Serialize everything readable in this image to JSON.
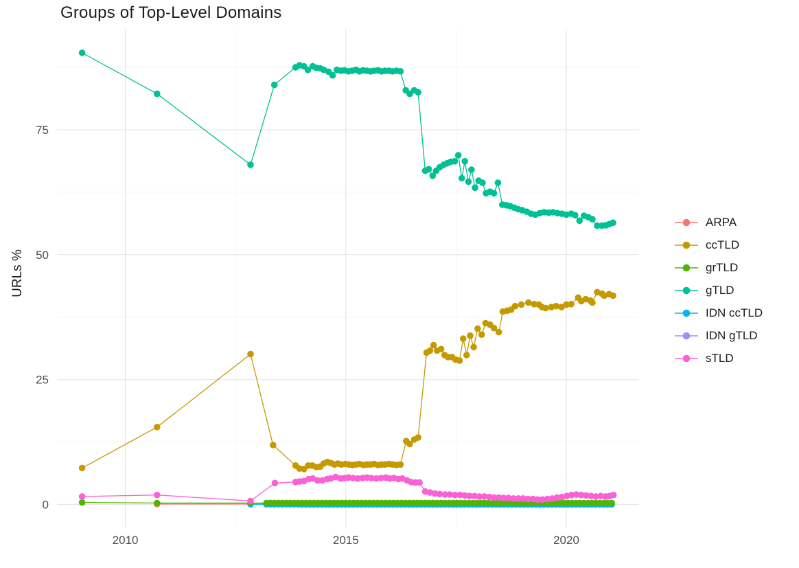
{
  "chart_data": {
    "type": "line",
    "title": "Groups of Top-Level Domains",
    "xlabel": "",
    "ylabel": "URLs %",
    "xlim": [
      2008.45,
      2021.65
    ],
    "ylim": [
      -4.6,
      95.2
    ],
    "grid": "on",
    "legend_position": "right",
    "x_ticks": [
      {
        "value": 2010,
        "label": "2010"
      },
      {
        "value": 2015,
        "label": "2015"
      },
      {
        "value": 2020,
        "label": "2020"
      }
    ],
    "y_ticks": [
      {
        "value": 0,
        "label": "0"
      },
      {
        "value": 25,
        "label": "25"
      },
      {
        "value": 50,
        "label": "50"
      },
      {
        "value": 75,
        "label": "75"
      }
    ],
    "x_minor": [
      2012.5,
      2017.5
    ],
    "y_minor": [
      12.5,
      37.5,
      62.5,
      87.5
    ],
    "draw_order": [
      "ARPA",
      "IDN gTLD",
      "IDN ccTLD",
      "grTLD",
      "ccTLD",
      "gTLD",
      "sTLD"
    ],
    "series": [
      {
        "name": "ARPA",
        "color": "#F8766D",
        "points": [
          [
            2010.72,
            0.1
          ],
          [
            2012.84,
            0.1
          ]
        ],
        "flat_segment": {
          "from": 2013.2,
          "to": 2021.06,
          "step": 0.09,
          "value": 0.1
        }
      },
      {
        "name": "ccTLD",
        "color": "#C49A00",
        "points": [
          [
            2009.02,
            7.3
          ],
          [
            2010.72,
            15.5
          ],
          [
            2012.84,
            30.1
          ],
          [
            2013.35,
            11.9
          ],
          [
            2013.86,
            7.8
          ],
          [
            2013.95,
            7.2
          ],
          [
            2014.05,
            7.1
          ],
          [
            2014.15,
            7.8
          ],
          [
            2014.24,
            7.8
          ],
          [
            2014.33,
            7.5
          ],
          [
            2014.42,
            7.6
          ],
          [
            2014.5,
            8.2
          ],
          [
            2014.58,
            8.5
          ],
          [
            2014.66,
            8.3
          ],
          [
            2014.74,
            8.0
          ],
          [
            2014.82,
            8.2
          ],
          [
            2014.9,
            8.0
          ],
          [
            2014.99,
            8.1
          ],
          [
            2015.07,
            8.0
          ],
          [
            2015.15,
            7.9
          ],
          [
            2015.23,
            8.0
          ],
          [
            2015.31,
            8.1
          ],
          [
            2015.4,
            7.9
          ],
          [
            2015.48,
            8.0
          ],
          [
            2015.56,
            8.0
          ],
          [
            2015.64,
            8.1
          ],
          [
            2015.73,
            7.9
          ],
          [
            2015.81,
            8.0
          ],
          [
            2015.89,
            8.0
          ],
          [
            2015.98,
            8.1
          ],
          [
            2016.06,
            8.0
          ],
          [
            2016.15,
            7.9
          ],
          [
            2016.24,
            8.0
          ],
          [
            2016.37,
            12.7
          ],
          [
            2016.45,
            12.1
          ],
          [
            2016.55,
            13.0
          ],
          [
            2016.64,
            13.4
          ],
          [
            2016.83,
            30.4
          ],
          [
            2016.91,
            30.8
          ],
          [
            2016.99,
            31.9
          ],
          [
            2017.07,
            30.8
          ],
          [
            2017.16,
            31.1
          ],
          [
            2017.24,
            29.9
          ],
          [
            2017.32,
            29.5
          ],
          [
            2017.41,
            29.5
          ],
          [
            2017.49,
            29.0
          ],
          [
            2017.58,
            28.8
          ],
          [
            2017.66,
            33.2
          ],
          [
            2017.74,
            29.9
          ],
          [
            2017.82,
            33.8
          ],
          [
            2017.9,
            31.5
          ],
          [
            2017.99,
            35.2
          ],
          [
            2018.08,
            34.0
          ],
          [
            2018.17,
            36.3
          ],
          [
            2018.27,
            36.0
          ],
          [
            2018.36,
            35.3
          ],
          [
            2018.47,
            34.5
          ],
          [
            2018.56,
            38.6
          ],
          [
            2018.66,
            38.8
          ],
          [
            2018.75,
            39.0
          ],
          [
            2018.84,
            39.7
          ],
          [
            2018.98,
            40.0
          ],
          [
            2019.14,
            40.4
          ],
          [
            2019.27,
            40.1
          ],
          [
            2019.38,
            40.0
          ],
          [
            2019.45,
            39.5
          ],
          [
            2019.53,
            39.3
          ],
          [
            2019.66,
            39.5
          ],
          [
            2019.77,
            39.7
          ],
          [
            2019.89,
            39.5
          ],
          [
            2020.0,
            40.0
          ],
          [
            2020.11,
            40.1
          ],
          [
            2020.27,
            41.4
          ],
          [
            2020.34,
            40.7
          ],
          [
            2020.44,
            41.1
          ],
          [
            2020.55,
            40.8
          ],
          [
            2020.59,
            40.4
          ],
          [
            2020.7,
            42.5
          ],
          [
            2020.81,
            42.2
          ],
          [
            2020.86,
            41.8
          ],
          [
            2020.97,
            42.1
          ],
          [
            2021.06,
            41.8
          ]
        ]
      },
      {
        "name": "grTLD",
        "color": "#53B400",
        "points": [
          [
            2009.02,
            0.4
          ],
          [
            2010.72,
            0.3
          ],
          [
            2012.84,
            0.3
          ]
        ],
        "flat_segment": {
          "from": 2013.2,
          "to": 2021.06,
          "step": 0.09,
          "value": 0.3
        }
      },
      {
        "name": "gTLD",
        "color": "#00C094",
        "points": [
          [
            2009.02,
            90.4
          ],
          [
            2010.72,
            82.2
          ],
          [
            2012.84,
            68.0
          ],
          [
            2013.38,
            84.0
          ],
          [
            2013.86,
            87.5
          ],
          [
            2013.95,
            87.9
          ],
          [
            2014.05,
            87.7
          ],
          [
            2014.14,
            87.0
          ],
          [
            2014.25,
            87.7
          ],
          [
            2014.33,
            87.4
          ],
          [
            2014.42,
            87.3
          ],
          [
            2014.5,
            87.0
          ],
          [
            2014.61,
            86.6
          ],
          [
            2014.7,
            85.9
          ],
          [
            2014.8,
            87.0
          ],
          [
            2014.89,
            86.8
          ],
          [
            2014.97,
            86.9
          ],
          [
            2015.06,
            86.7
          ],
          [
            2015.14,
            86.8
          ],
          [
            2015.23,
            87.0
          ],
          [
            2015.31,
            86.7
          ],
          [
            2015.39,
            86.9
          ],
          [
            2015.48,
            86.8
          ],
          [
            2015.56,
            86.7
          ],
          [
            2015.64,
            86.8
          ],
          [
            2015.73,
            86.9
          ],
          [
            2015.81,
            86.7
          ],
          [
            2015.89,
            86.8
          ],
          [
            2015.98,
            86.8
          ],
          [
            2016.06,
            86.7
          ],
          [
            2016.15,
            86.8
          ],
          [
            2016.24,
            86.7
          ],
          [
            2016.36,
            82.9
          ],
          [
            2016.45,
            82.2
          ],
          [
            2016.55,
            82.9
          ],
          [
            2016.64,
            82.5
          ],
          [
            2016.8,
            66.8
          ],
          [
            2016.88,
            67.1
          ],
          [
            2016.97,
            65.8
          ],
          [
            2017.05,
            66.8
          ],
          [
            2017.13,
            67.5
          ],
          [
            2017.22,
            68.0
          ],
          [
            2017.3,
            68.3
          ],
          [
            2017.38,
            68.6
          ],
          [
            2017.47,
            68.7
          ],
          [
            2017.55,
            69.9
          ],
          [
            2017.63,
            65.3
          ],
          [
            2017.7,
            68.7
          ],
          [
            2017.78,
            64.6
          ],
          [
            2017.85,
            67.0
          ],
          [
            2017.93,
            63.4
          ],
          [
            2018.01,
            64.8
          ],
          [
            2018.1,
            64.4
          ],
          [
            2018.18,
            62.3
          ],
          [
            2018.27,
            62.6
          ],
          [
            2018.36,
            62.3
          ],
          [
            2018.45,
            64.4
          ],
          [
            2018.55,
            60.0
          ],
          [
            2018.64,
            59.9
          ],
          [
            2018.73,
            59.7
          ],
          [
            2018.82,
            59.4
          ],
          [
            2018.91,
            59.1
          ],
          [
            2019.0,
            58.9
          ],
          [
            2019.1,
            58.6
          ],
          [
            2019.2,
            58.2
          ],
          [
            2019.3,
            58.0
          ],
          [
            2019.4,
            58.3
          ],
          [
            2019.5,
            58.5
          ],
          [
            2019.6,
            58.4
          ],
          [
            2019.7,
            58.5
          ],
          [
            2019.8,
            58.3
          ],
          [
            2019.9,
            58.2
          ],
          [
            2020.0,
            58.0
          ],
          [
            2020.11,
            58.2
          ],
          [
            2020.2,
            57.9
          ],
          [
            2020.3,
            56.8
          ],
          [
            2020.4,
            57.8
          ],
          [
            2020.5,
            57.5
          ],
          [
            2020.59,
            57.1
          ],
          [
            2020.7,
            55.8
          ],
          [
            2020.81,
            55.8
          ],
          [
            2020.9,
            55.9
          ],
          [
            2020.97,
            56.1
          ],
          [
            2021.06,
            56.4
          ]
        ]
      },
      {
        "name": "IDN ccTLD",
        "color": "#00B6EB",
        "points": [
          [
            2012.84,
            0.05
          ]
        ],
        "flat_segment": {
          "from": 2013.2,
          "to": 2021.06,
          "step": 0.09,
          "value": 0.05
        }
      },
      {
        "name": "IDN gTLD",
        "color": "#A58AFF",
        "points": [],
        "flat_segment": {
          "from": 2014.0,
          "to": 2021.06,
          "step": 0.09,
          "value": 0.0
        }
      },
      {
        "name": "sTLD",
        "color": "#FB61D7",
        "points": [
          [
            2009.02,
            1.6
          ],
          [
            2010.72,
            1.9
          ],
          [
            2012.84,
            0.7
          ],
          [
            2013.39,
            4.3
          ],
          [
            2013.86,
            4.5
          ],
          [
            2013.95,
            4.6
          ],
          [
            2014.05,
            4.7
          ],
          [
            2014.16,
            5.1
          ],
          [
            2014.25,
            5.2
          ],
          [
            2014.36,
            4.8
          ],
          [
            2014.47,
            4.8
          ],
          [
            2014.58,
            5.1
          ],
          [
            2014.66,
            5.2
          ],
          [
            2014.77,
            5.5
          ],
          [
            2014.88,
            5.2
          ],
          [
            2014.97,
            5.3
          ],
          [
            2015.06,
            5.4
          ],
          [
            2015.16,
            5.3
          ],
          [
            2015.27,
            5.2
          ],
          [
            2015.38,
            5.3
          ],
          [
            2015.48,
            5.4
          ],
          [
            2015.58,
            5.3
          ],
          [
            2015.69,
            5.2
          ],
          [
            2015.8,
            5.3
          ],
          [
            2015.91,
            5.4
          ],
          [
            2016.0,
            5.2
          ],
          [
            2016.09,
            5.3
          ],
          [
            2016.19,
            5.1
          ],
          [
            2016.28,
            5.2
          ],
          [
            2016.39,
            4.8
          ],
          [
            2016.48,
            4.5
          ],
          [
            2016.58,
            4.4
          ],
          [
            2016.67,
            4.4
          ],
          [
            2016.8,
            2.6
          ],
          [
            2016.91,
            2.4
          ],
          [
            2017.02,
            2.2
          ],
          [
            2017.13,
            2.1
          ],
          [
            2017.25,
            2.0
          ],
          [
            2017.36,
            2.0
          ],
          [
            2017.48,
            1.9
          ],
          [
            2017.59,
            1.9
          ],
          [
            2017.7,
            1.8
          ],
          [
            2017.81,
            1.7
          ],
          [
            2017.92,
            1.7
          ],
          [
            2018.03,
            1.6
          ],
          [
            2018.14,
            1.6
          ],
          [
            2018.25,
            1.5
          ],
          [
            2018.36,
            1.4
          ],
          [
            2018.47,
            1.4
          ],
          [
            2018.58,
            1.3
          ],
          [
            2018.69,
            1.3
          ],
          [
            2018.8,
            1.2
          ],
          [
            2018.91,
            1.2
          ],
          [
            2019.02,
            1.2
          ],
          [
            2019.13,
            1.1
          ],
          [
            2019.24,
            1.1
          ],
          [
            2019.35,
            1.0
          ],
          [
            2019.46,
            1.0
          ],
          [
            2019.57,
            1.1
          ],
          [
            2019.68,
            1.2
          ],
          [
            2019.79,
            1.4
          ],
          [
            2019.9,
            1.5
          ],
          [
            2020.01,
            1.7
          ],
          [
            2020.12,
            1.9
          ],
          [
            2020.23,
            2.0
          ],
          [
            2020.34,
            1.9
          ],
          [
            2020.45,
            1.8
          ],
          [
            2020.56,
            1.7
          ],
          [
            2020.67,
            1.6
          ],
          [
            2020.78,
            1.7
          ],
          [
            2020.89,
            1.6
          ],
          [
            2020.98,
            1.7
          ],
          [
            2021.07,
            1.9
          ]
        ]
      }
    ],
    "style": {
      "grid_major_color": "#E6E6E6",
      "grid_minor_color": "#F1F1F1",
      "tick_label_color": "#4d4d4d",
      "point_radius": 4.8,
      "line_width": 1.3
    }
  }
}
